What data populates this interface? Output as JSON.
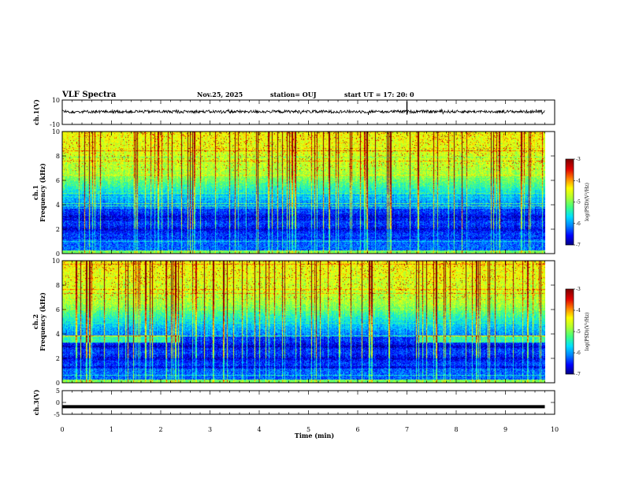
{
  "header": {
    "title": "VLF Spectra",
    "date": "Nov.25, 2025",
    "station": "station= OUJ",
    "start": "start  UT  =   17: 20: 0"
  },
  "colors": {
    "spectrum": [
      "#00007f",
      "#0000ff",
      "#0080ff",
      "#00e0ff",
      "#40ff80",
      "#b0ff30",
      "#ffff00",
      "#ff8000",
      "#e00000",
      "#800000"
    ],
    "waveform": "#000000"
  },
  "chart_data": [
    {
      "type": "line",
      "name": "waveform-ch1",
      "ylabel": "ch.1(V)",
      "ylim": [
        -10,
        10
      ],
      "y_ticklabels": [
        "10",
        "-10"
      ],
      "xlim": [
        0,
        10
      ],
      "level": 0.5,
      "noise_amplitude": 1.2,
      "spike": {
        "x": 7.0,
        "min": -2,
        "max": 9
      },
      "data_end": 9.8
    },
    {
      "type": "heatmap",
      "name": "spectrogram-ch1",
      "ylabel_line1": "ch.1",
      "ylabel_line2": "Frequency (kHz)",
      "ylim": [
        0,
        10
      ],
      "y_ticklabels": [
        "0",
        "2",
        "4",
        "6",
        "8",
        "10"
      ],
      "xlim": [
        0,
        10
      ],
      "data_end": 9.8,
      "colorbar": {
        "label": "log(PSD)(V²/Hz)",
        "range": [
          -7,
          -3
        ],
        "ticklabels": [
          "-3",
          "-4",
          "-5",
          "-6",
          "-7"
        ]
      }
    },
    {
      "type": "heatmap",
      "name": "spectrogram-ch2",
      "ylabel_line1": "ch.2",
      "ylabel_line2": "Frequency (kHz)",
      "ylim": [
        0,
        10
      ],
      "y_ticklabels": [
        "0",
        "2",
        "4",
        "6",
        "8",
        "10"
      ],
      "xlim": [
        0,
        10
      ],
      "data_end": 9.8,
      "quiet_band_intervals": [
        [
          2.4,
          7.2
        ]
      ],
      "colorbar": {
        "label": "log(PSD)(V²/Hz)",
        "range": [
          -7,
          -3
        ],
        "ticklabels": [
          "-3",
          "-4",
          "-5",
          "-6",
          "-7"
        ]
      }
    },
    {
      "type": "line",
      "name": "waveform-ch3",
      "ylabel": "ch.3(V)",
      "ylim": [
        -5,
        5
      ],
      "y_ticklabels": [
        "5",
        "0",
        "-5"
      ],
      "xlim": [
        0,
        10
      ],
      "level": -1.8,
      "data_end": 9.8,
      "xlabel": "Time (min)",
      "x_ticklabels": [
        "0",
        "1",
        "2",
        "3",
        "4",
        "5",
        "6",
        "7",
        "8",
        "9",
        "10"
      ]
    }
  ]
}
